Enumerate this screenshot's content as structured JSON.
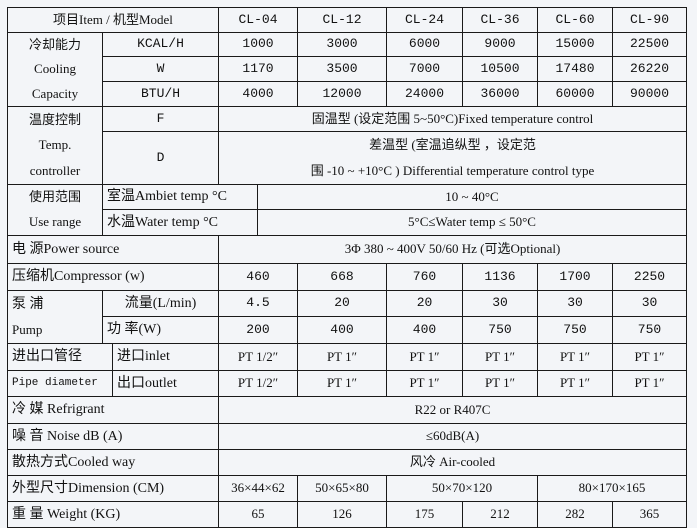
{
  "header": {
    "item_model": "项目Item / 机型Model",
    "models": [
      "CL-04",
      "CL-12",
      "CL-24",
      "CL-36",
      "CL-60",
      "CL-90"
    ]
  },
  "cooling": {
    "label": [
      "冷却能力",
      "Cooling",
      "Capacity"
    ],
    "rows": [
      {
        "unit": "KCAL/H",
        "values": [
          "1000",
          "3000",
          "6000",
          "9000",
          "15000",
          "22500"
        ]
      },
      {
        "unit": "W",
        "values": [
          "1170",
          "3500",
          "7000",
          "10500",
          "17480",
          "26220"
        ]
      },
      {
        "unit": "BTU/H",
        "values": [
          "4000",
          "12000",
          "24000",
          "36000",
          "60000",
          "90000"
        ]
      }
    ]
  },
  "temp_control": {
    "label": [
      "温度控制",
      "Temp.",
      "controller"
    ],
    "f_key": "F",
    "f_value": "固温型 (设定范围  5~50°C)Fixed temperature control",
    "d_key": "D",
    "d_value_line1": "差温型 (室温追纵型  ，设定范",
    "d_value_line2": "围  -10 ~ +10°C ) Differential temperature control type"
  },
  "use_range": {
    "label": [
      "使用范围",
      "Use  range"
    ],
    "ambient_label": "室温Ambiet temp  °C",
    "ambient_value": "10 ~ 40°C",
    "water_label": "水温Water  temp  °C",
    "water_value": "5°C≤Water  temp  ≤ 50°C"
  },
  "power": {
    "label": "电  源Power source",
    "value": "3Φ 380 ~ 400V 50/60 Hz (可选Optional)"
  },
  "compressor": {
    "label": "压缩机Compressor (w)",
    "values": [
      "460",
      "668",
      "760",
      "1136",
      "1700",
      "2250"
    ]
  },
  "pump": {
    "label": [
      "泵   浦",
      "Pump"
    ],
    "flow_label": "流量(L/min)",
    "flow_values": [
      "4.5",
      "20",
      "20",
      "30",
      "30",
      "30"
    ],
    "power_label": "功  率(W)",
    "power_values": [
      "200",
      "400",
      "400",
      "750",
      "750",
      "750"
    ]
  },
  "pipe": {
    "label": [
      "进出口管径",
      "Pipe diameter"
    ],
    "inlet_label": "进口inlet",
    "inlet_values": [
      "PT 1/2″",
      "PT 1″",
      "PT 1″",
      "PT 1″",
      "PT 1″",
      "PT 1″"
    ],
    "outlet_label": "出口outlet",
    "outlet_values": [
      "PT 1/2″",
      "PT 1″",
      "PT 1″",
      "PT 1″",
      "PT 1″",
      "PT 1″"
    ]
  },
  "refrigerant": {
    "label": "冷   媒  Refrigrant",
    "value": "R22  or  R407C"
  },
  "noise": {
    "label": "噪  音  Noise  dB (A)",
    "value": "≤60dB(A)"
  },
  "cooled": {
    "label": "散热方式Cooled way",
    "value": "风冷  Air-cooled"
  },
  "dimension": {
    "label": "外型尺寸Dimension (CM)",
    "values": [
      "36×44×62",
      "50×65×80",
      "50×70×120",
      "80×170×165"
    ]
  },
  "weight": {
    "label": "重     量  Weight (KG)",
    "values": [
      "65",
      "126",
      "175",
      "212",
      "282",
      "365"
    ]
  }
}
